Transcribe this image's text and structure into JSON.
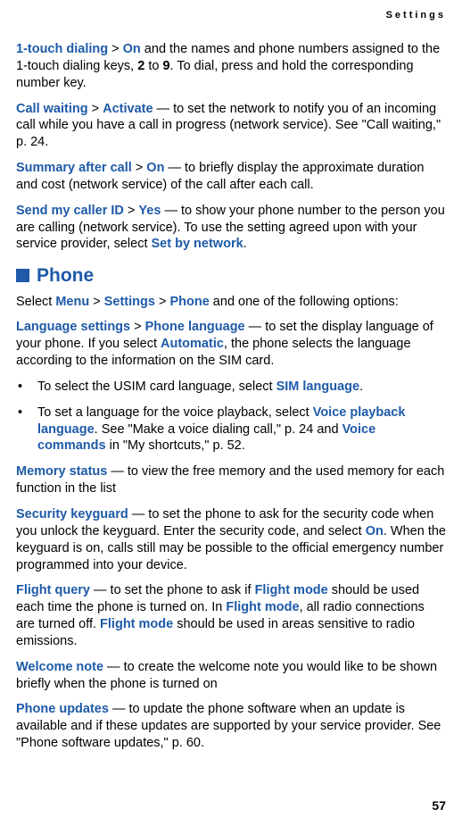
{
  "header": {
    "section_label": "Settings"
  },
  "p1": {
    "t1": "1-touch dialing",
    "t2": " > ",
    "t3": "On",
    "t4": " and the names and phone numbers assigned to the 1-touch dialing keys, ",
    "t5": "2",
    "t6": " to ",
    "t7": "9",
    "t8": ". To dial, press and hold the corresponding number key."
  },
  "p2": {
    "t1": "Call waiting",
    "t2": " > ",
    "t3": "Activate",
    "t4": " — to set the network to notify you of an incoming call while you have a call in progress (network service). See \"Call waiting,\" p. 24."
  },
  "p3": {
    "t1": "Summary after call",
    "t2": " > ",
    "t3": "On",
    "t4": " — to briefly display the approximate duration and cost (network service) of the call after each call."
  },
  "p4": {
    "t1": "Send my caller ID",
    "t2": " > ",
    "t3": "Yes",
    "t4": " — to show your phone number to the person you are calling (network service). To use the setting agreed upon with your service provider, select ",
    "t5": "Set by network",
    "t6": "."
  },
  "section": {
    "title": "Phone"
  },
  "p5": {
    "t1": "Select ",
    "t2": "Menu",
    "t3": " > ",
    "t4": "Settings",
    "t5": " > ",
    "t6": "Phone",
    "t7": " and one of the following options:"
  },
  "p6": {
    "t1": "Language settings",
    "t2": " > ",
    "t3": "Phone language",
    "t4": " — to set the display language of your phone. If you select ",
    "t5": "Automatic",
    "t6": ", the phone selects the language according to the information on the SIM card."
  },
  "b1": {
    "dot": "•",
    "t1": "To select the USIM card language, select ",
    "t2": "SIM language",
    "t3": "."
  },
  "b2": {
    "dot": "•",
    "t1": "To set a language for the voice playback, select ",
    "t2": "Voice playback language",
    "t3": ". See \"Make a voice dialing call,\" p. 24 and ",
    "t4": "Voice commands",
    "t5": " in \"My shortcuts,\" p. 52."
  },
  "p7": {
    "t1": "Memory status",
    "t2": " — to view the free memory and the used memory for each function in the list"
  },
  "p8": {
    "t1": "Security keyguard",
    "t2": " — to set the phone to ask for the security code when you unlock the keyguard. Enter the security code, and select ",
    "t3": "On",
    "t4": ". When the keyguard is on, calls still may be possible to the official emergency number programmed into your device."
  },
  "p9": {
    "t1": "Flight query",
    "t2": " — to set the phone to ask if ",
    "t3": "Flight mode",
    "t4": " should be used each time the phone is turned on. In ",
    "t5": "Flight mode",
    "t6": ", all radio connections are turned off. ",
    "t7": "Flight mode",
    "t8": " should be used in areas sensitive to radio emissions."
  },
  "p10": {
    "t1": "Welcome note",
    "t2": " — to create the welcome note you would like to be shown briefly when the phone is turned on"
  },
  "p11": {
    "t1": "Phone updates",
    "t2": " — to update the phone software when an update is available and if these updates are supported by your service provider. See \"Phone software updates,\" p. 60."
  },
  "footer": {
    "page_number": "57"
  }
}
